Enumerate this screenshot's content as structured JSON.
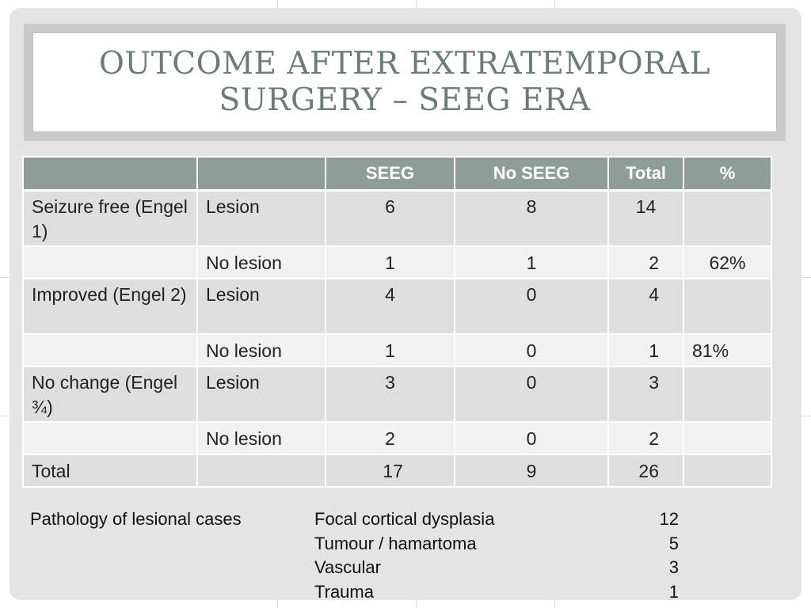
{
  "title": {
    "line1": "Outcome after extratemporal",
    "line2": "surgery – SEEG era"
  },
  "table": {
    "headers": [
      "",
      "",
      "SEEG",
      "No SEEG",
      "Total",
      "%"
    ],
    "rows": [
      {
        "outcome": "Seizure free (Engel 1)",
        "type": "Lesion",
        "seeg": "6",
        "no_seeg": "8",
        "total": "14",
        "pct": ""
      },
      {
        "outcome": "",
        "type": "No lesion",
        "seeg": "1",
        "no_seeg": "1",
        "total": "2",
        "pct": "62%"
      },
      {
        "outcome": "Improved (Engel 2)",
        "type": "Lesion",
        "seeg": "4",
        "no_seeg": "0",
        "total": "4",
        "pct": ""
      },
      {
        "outcome": "",
        "type": "No lesion",
        "seeg": "1",
        "no_seeg": "0",
        "total": "1",
        "pct": "81%"
      },
      {
        "outcome": "No change (Engel ¾)",
        "type": "Lesion",
        "seeg": "3",
        "no_seeg": "0",
        "total": "3",
        "pct": ""
      },
      {
        "outcome": "",
        "type": "No lesion",
        "seeg": "2",
        "no_seeg": "0",
        "total": "2",
        "pct": ""
      },
      {
        "outcome": "Total",
        "type": "",
        "seeg": "17",
        "no_seeg": "9",
        "total": "26",
        "pct": ""
      }
    ]
  },
  "pathology": {
    "label": "Pathology of lesional cases",
    "items": [
      {
        "name": "Focal cortical dysplasia",
        "count": "12"
      },
      {
        "name": "Tumour / hamartoma",
        "count": "5"
      },
      {
        "name": "Vascular",
        "count": "3"
      },
      {
        "name": "Trauma",
        "count": "1"
      }
    ]
  }
}
